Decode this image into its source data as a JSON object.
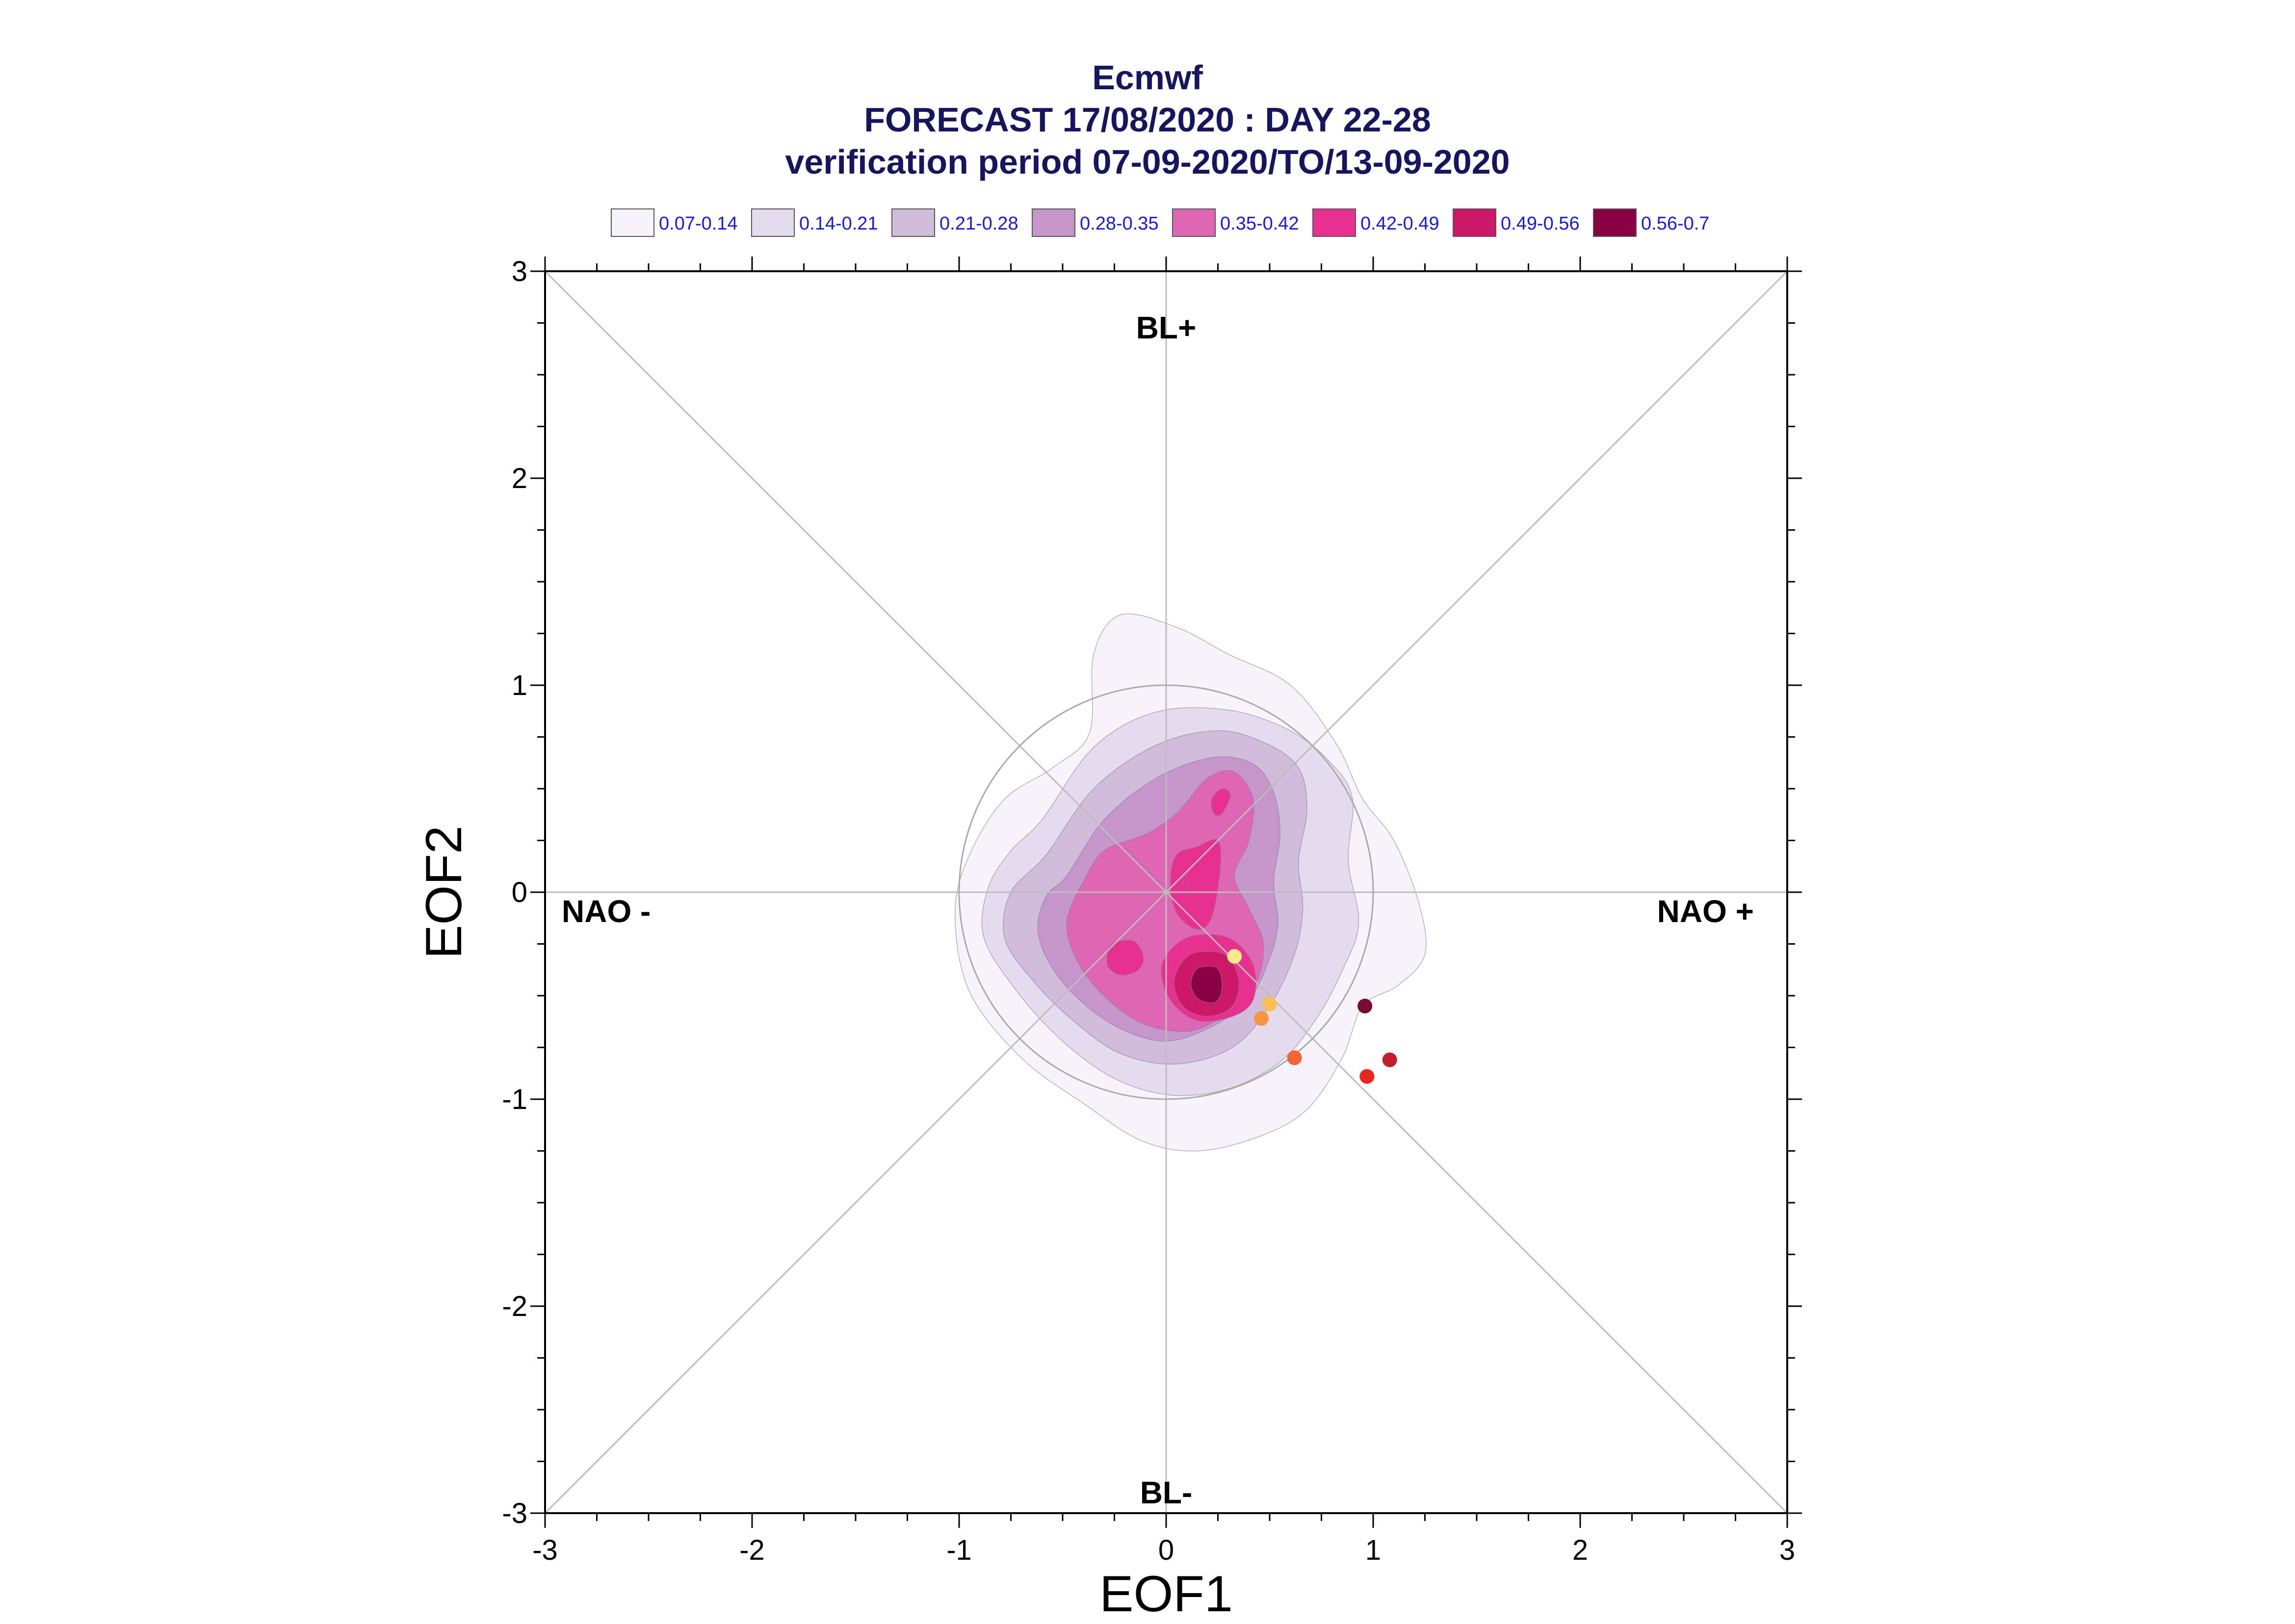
{
  "header": {
    "title_lines": [
      "Ecmwf",
      "FORECAST 17/08/2020 : DAY 22-28",
      "verification period 07-09-2020/TO/13-09-2020"
    ]
  },
  "legend": {
    "entries": [
      {
        "label": "0.07-0.14",
        "color": "#f6f4fa"
      },
      {
        "label": "0.14-0.21",
        "color": "#e5ddee"
      },
      {
        "label": "0.21-0.28",
        "color": "#d2bcdc"
      },
      {
        "label": "0.28-0.35",
        "color": "#c696cb"
      },
      {
        "label": "0.35-0.42",
        "color": "#de66b3"
      },
      {
        "label": "0.42-0.49",
        "color": "#e8308e"
      },
      {
        "label": "0.49-0.56",
        "color": "#cc1866"
      },
      {
        "label": "0.56-0.7",
        "color": "#8a0044"
      }
    ]
  },
  "chart_data": {
    "type": "scatter",
    "xlabel": "EOF1",
    "ylabel": "EOF2",
    "xlim": [
      -3,
      3
    ],
    "ylim": [
      -3,
      3
    ],
    "xticks": [
      "-3",
      "-2",
      "-1",
      "0",
      "1",
      "2",
      "3"
    ],
    "yticks": [
      "-3",
      "-2",
      "-1",
      "0",
      "1",
      "2",
      "3"
    ],
    "regime_labels": {
      "top": "BL+",
      "bottom": "BL-",
      "left": "NAO -",
      "right": "NAO +"
    },
    "reference_circle_radius": 1,
    "contours": [
      {
        "level": "0.07-0.14",
        "color": "#f6f4fa",
        "points": [
          [
            -0.37,
            0.77
          ],
          [
            -0.35,
            1.15
          ],
          [
            -0.22,
            1.34
          ],
          [
            0.05,
            1.28
          ],
          [
            0.3,
            1.15
          ],
          [
            0.6,
            1.0
          ],
          [
            0.82,
            0.72
          ],
          [
            0.95,
            0.45
          ],
          [
            1.1,
            0.25
          ],
          [
            1.22,
            -0.05
          ],
          [
            1.25,
            -0.3
          ],
          [
            1.12,
            -0.45
          ],
          [
            0.95,
            -0.55
          ],
          [
            0.85,
            -0.8
          ],
          [
            0.68,
            -1.05
          ],
          [
            0.45,
            -1.18
          ],
          [
            0.15,
            -1.25
          ],
          [
            -0.12,
            -1.2
          ],
          [
            -0.4,
            -1.02
          ],
          [
            -0.7,
            -0.8
          ],
          [
            -0.95,
            -0.48
          ],
          [
            -1.02,
            -0.1
          ],
          [
            -0.95,
            0.18
          ],
          [
            -0.78,
            0.45
          ],
          [
            -0.55,
            0.6
          ]
        ]
      },
      {
        "level": "0.14-0.21",
        "color": "#e5ddee",
        "points": [
          [
            -0.6,
            0.35
          ],
          [
            -0.35,
            0.7
          ],
          [
            -0.05,
            0.87
          ],
          [
            0.3,
            0.88
          ],
          [
            0.6,
            0.78
          ],
          [
            0.8,
            0.62
          ],
          [
            0.9,
            0.45
          ],
          [
            0.88,
            0.15
          ],
          [
            0.93,
            -0.15
          ],
          [
            0.85,
            -0.38
          ],
          [
            0.72,
            -0.62
          ],
          [
            0.55,
            -0.82
          ],
          [
            0.3,
            -0.95
          ],
          [
            0.02,
            -0.98
          ],
          [
            -0.25,
            -0.9
          ],
          [
            -0.5,
            -0.72
          ],
          [
            -0.72,
            -0.48
          ],
          [
            -0.88,
            -0.22
          ],
          [
            -0.86,
            0.02
          ],
          [
            -0.75,
            0.2
          ]
        ]
      },
      {
        "level": "0.21-0.28",
        "color": "#d2bcdc",
        "points": [
          [
            -0.58,
            0.18
          ],
          [
            -0.35,
            0.5
          ],
          [
            -0.05,
            0.71
          ],
          [
            0.25,
            0.78
          ],
          [
            0.48,
            0.72
          ],
          [
            0.64,
            0.6
          ],
          [
            0.68,
            0.4
          ],
          [
            0.64,
            0.15
          ],
          [
            0.66,
            -0.08
          ],
          [
            0.62,
            -0.3
          ],
          [
            0.5,
            -0.55
          ],
          [
            0.32,
            -0.75
          ],
          [
            0.05,
            -0.83
          ],
          [
            -0.22,
            -0.78
          ],
          [
            -0.45,
            -0.62
          ],
          [
            -0.65,
            -0.42
          ],
          [
            -0.78,
            -0.22
          ],
          [
            -0.75,
            0.0
          ]
        ]
      },
      {
        "level": "0.28-0.35",
        "color": "#c696cb",
        "points": [
          [
            -0.48,
            0.08
          ],
          [
            -0.3,
            0.35
          ],
          [
            -0.05,
            0.55
          ],
          [
            0.22,
            0.65
          ],
          [
            0.42,
            0.62
          ],
          [
            0.52,
            0.48
          ],
          [
            0.55,
            0.28
          ],
          [
            0.52,
            0.05
          ],
          [
            0.54,
            -0.15
          ],
          [
            0.5,
            -0.32
          ],
          [
            0.4,
            -0.52
          ],
          [
            0.22,
            -0.65
          ],
          [
            0.0,
            -0.72
          ],
          [
            -0.22,
            -0.66
          ],
          [
            -0.42,
            -0.52
          ],
          [
            -0.56,
            -0.35
          ],
          [
            -0.62,
            -0.18
          ],
          [
            -0.58,
            -0.02
          ]
        ]
      },
      {
        "level": "0.35-0.42",
        "color": "#de66b3",
        "points": [
          [
            -0.4,
            0.05
          ],
          [
            -0.3,
            0.2
          ],
          [
            -0.1,
            0.28
          ],
          [
            0.05,
            0.38
          ],
          [
            0.2,
            0.55
          ],
          [
            0.33,
            0.58
          ],
          [
            0.42,
            0.45
          ],
          [
            0.4,
            0.25
          ],
          [
            0.33,
            0.08
          ],
          [
            0.4,
            -0.08
          ],
          [
            0.47,
            -0.25
          ],
          [
            0.43,
            -0.45
          ],
          [
            0.3,
            -0.58
          ],
          [
            0.12,
            -0.67
          ],
          [
            -0.1,
            -0.64
          ],
          [
            -0.28,
            -0.52
          ],
          [
            -0.42,
            -0.35
          ],
          [
            -0.48,
            -0.15
          ]
        ]
      },
      {
        "level": "0.42-0.49",
        "color": "#e8308e",
        "points": [
          [
            0.15,
            0.22
          ],
          [
            0.25,
            0.25
          ],
          [
            0.26,
            0.1
          ],
          [
            0.22,
            -0.12
          ],
          [
            0.15,
            -0.18
          ],
          [
            0.05,
            -0.1
          ],
          [
            0.02,
            0.05
          ],
          [
            0.05,
            0.18
          ]
        ]
      },
      {
        "level": "0.42-0.49",
        "color": "#e8308e",
        "points": [
          [
            0.22,
            0.45
          ],
          [
            0.27,
            0.5
          ],
          [
            0.31,
            0.47
          ],
          [
            0.27,
            0.38
          ],
          [
            0.23,
            0.38
          ]
        ]
      },
      {
        "level": "0.42-0.49",
        "color": "#e8308e",
        "points": [
          [
            -0.24,
            -0.24
          ],
          [
            -0.15,
            -0.24
          ],
          [
            -0.11,
            -0.32
          ],
          [
            -0.14,
            -0.38
          ],
          [
            -0.22,
            -0.4
          ],
          [
            -0.28,
            -0.36
          ],
          [
            -0.28,
            -0.28
          ]
        ]
      },
      {
        "level": "0.42-0.49",
        "color": "#e8308e",
        "points": [
          [
            0.1,
            -0.22
          ],
          [
            0.3,
            -0.22
          ],
          [
            0.42,
            -0.35
          ],
          [
            0.42,
            -0.52
          ],
          [
            0.32,
            -0.6
          ],
          [
            0.15,
            -0.62
          ],
          [
            0.02,
            -0.52
          ],
          [
            -0.02,
            -0.35
          ]
        ]
      },
      {
        "level": "0.49-0.56",
        "color": "#cc1866",
        "points": [
          [
            0.12,
            -0.3
          ],
          [
            0.28,
            -0.3
          ],
          [
            0.35,
            -0.42
          ],
          [
            0.32,
            -0.55
          ],
          [
            0.2,
            -0.6
          ],
          [
            0.08,
            -0.55
          ],
          [
            0.04,
            -0.42
          ]
        ]
      },
      {
        "level": "0.56-0.7",
        "color": "#8a0044",
        "points": [
          [
            0.18,
            -0.36
          ],
          [
            0.25,
            -0.37
          ],
          [
            0.27,
            -0.46
          ],
          [
            0.24,
            -0.53
          ],
          [
            0.16,
            -0.52
          ],
          [
            0.12,
            -0.45
          ],
          [
            0.14,
            -0.38
          ]
        ]
      },
      {
        "level": "0.42-0.49",
        "color": "#e8308e",
        "points": [
          [
            0.09,
            0.08
          ],
          [
            0.11,
            0.07
          ],
          [
            0.11,
            0.03
          ],
          [
            0.09,
            0.02
          ],
          [
            0.08,
            0.05
          ]
        ]
      }
    ],
    "points": [
      {
        "x": 0.33,
        "y": -0.31,
        "color": "#fde98a"
      },
      {
        "x": 0.5,
        "y": -0.54,
        "color": "#fdbf55"
      },
      {
        "x": 0.46,
        "y": -0.61,
        "color": "#fb9440"
      },
      {
        "x": 0.62,
        "y": -0.8,
        "color": "#f26530"
      },
      {
        "x": 0.96,
        "y": -0.55,
        "color": "#7a0b30"
      },
      {
        "x": 1.08,
        "y": -0.81,
        "color": "#c31f2a"
      },
      {
        "x": 0.97,
        "y": -0.89,
        "color": "#e8261e"
      }
    ]
  }
}
